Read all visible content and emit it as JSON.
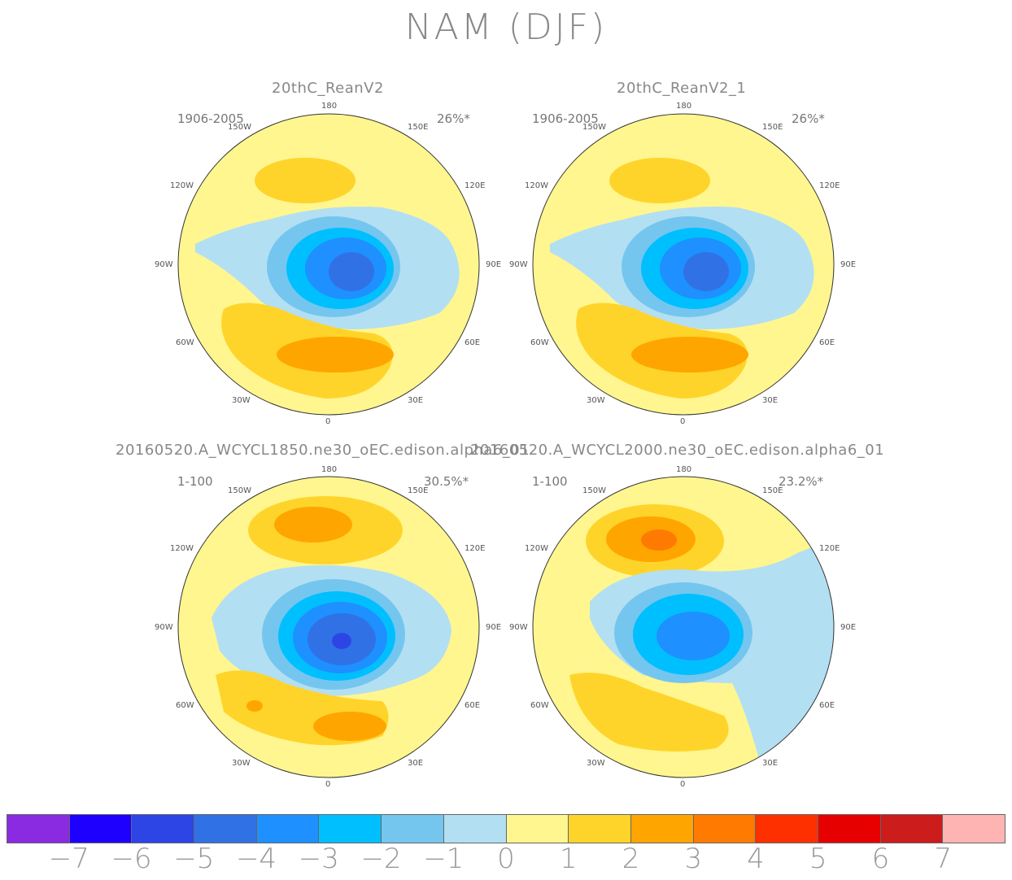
{
  "title": "NAM (DJF)",
  "panels": [
    {
      "title": "20thC_ReanV2",
      "period": "1906-2005",
      "variance": "26%*",
      "colors": {
        "top_pos": "#ffd42a",
        "center": "#1e8ff0"
      }
    },
    {
      "title": "20thC_ReanV2_1",
      "period": "1906-2005",
      "variance": "26%*",
      "colors": {
        "top_pos": "#ffd42a",
        "center": "#1e8ff0"
      }
    },
    {
      "title": "20160520.A_WCYCL1850.ne30_oEC.edison.alpha6_01",
      "period": "1-100",
      "variance": "30.5%*",
      "colors": {
        "top_pos": "#ffa500",
        "center": "#3072e6"
      }
    },
    {
      "title": "20160520.A_WCYCL2000.ne30_oEC.edison.alpha6_01",
      "period": "1-100",
      "variance": "23.2%*",
      "colors": {
        "top_pos": "#ff7a00",
        "center": "#1e8ff0"
      }
    }
  ],
  "lon_labels": [
    "180",
    "150W",
    "150E",
    "120W",
    "120E",
    "90W",
    "90E",
    "60W",
    "60E",
    "30W",
    "30E",
    "0"
  ],
  "colorbar": {
    "colors": [
      "#8a2be2",
      "#1e00ff",
      "#2e45e6",
      "#3072e6",
      "#1e90ff",
      "#00bfff",
      "#74c6ef",
      "#b3dff3",
      "#fff68f",
      "#ffd42a",
      "#ffa500",
      "#ff7a00",
      "#ff3000",
      "#e60000",
      "#cc1c1c",
      "#ffb4b4"
    ],
    "labels": [
      "−7",
      "−6",
      "−5",
      "−4",
      "−3",
      "−2",
      "−1",
      "0",
      "1",
      "2",
      "3",
      "4",
      "5",
      "6",
      "7"
    ]
  }
}
